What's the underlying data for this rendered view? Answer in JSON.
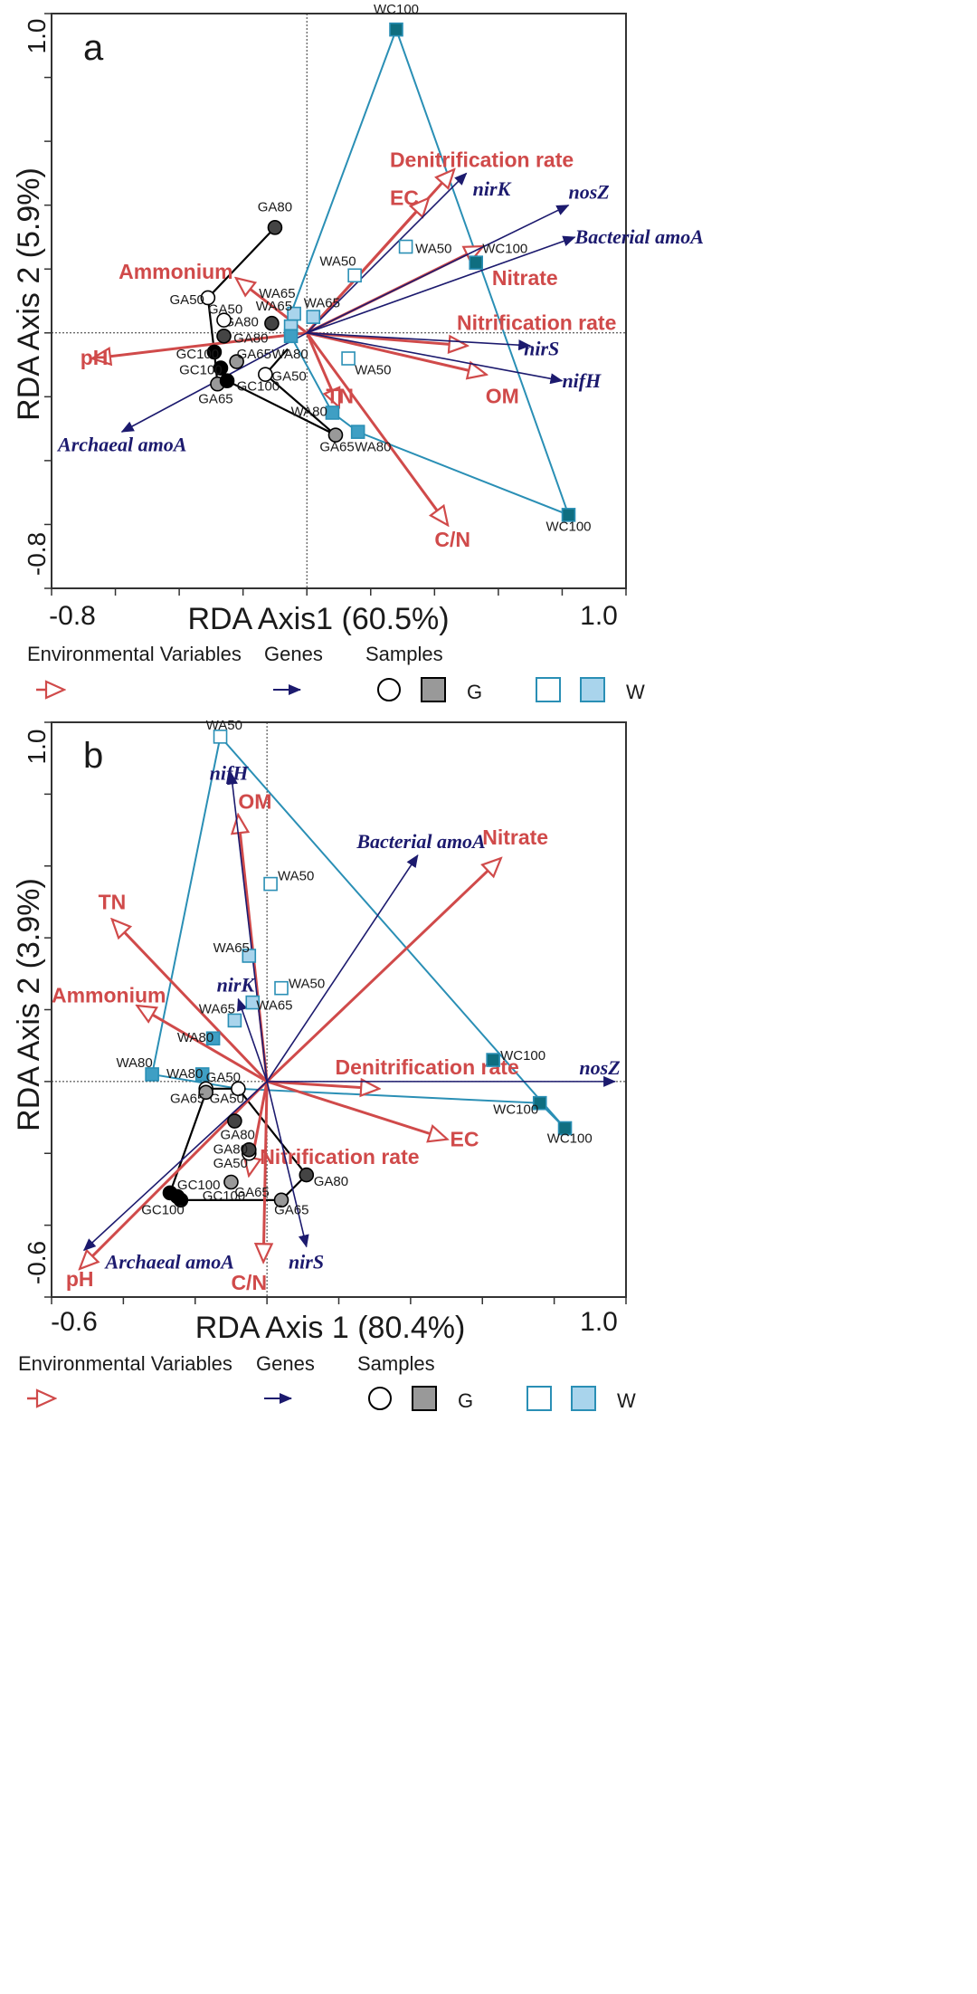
{
  "colors": {
    "env": "#d04a4a",
    "gene": "#1c1a6e",
    "g_hull": "#000000",
    "w_hull": "#2a8fb5",
    "w_dark": "#0f6e80",
    "w_mid": "#3f9fc4",
    "w_light": "#a9d4ec",
    "g_dark": "#444444",
    "g_mid": "#999999",
    "g_light": "#cccccc"
  },
  "legend": {
    "env_label": "Environmental Variables",
    "genes_label": "Genes",
    "samples_label": "Samples",
    "g_label": "G",
    "w_label": "W"
  },
  "chart_data": [
    {
      "type": "scatter",
      "panel_label": "a",
      "xlabel": "RDA Axis1 (60.5%)",
      "ylabel": "RDA Axis 2 (5.9%)",
      "xlim": [
        -0.8,
        1.0
      ],
      "ylim": [
        -0.8,
        1.0
      ],
      "xticks_labeled": [
        {
          "v": -0.8,
          "label": "-0.8"
        },
        {
          "v": 1.0,
          "label": "1.0"
        }
      ],
      "yticks_labeled": [
        {
          "v": -0.8,
          "label": "-0.8"
        },
        {
          "v": 1.0,
          "label": "1.0"
        }
      ],
      "tick_step": 0.2,
      "env_vectors": [
        {
          "name": "Denitrification rate",
          "x": 0.46,
          "y": 0.51,
          "lx": 0.26,
          "ly": 0.52,
          "anchor": "start"
        },
        {
          "name": "EC",
          "x": 0.38,
          "y": 0.42,
          "lx": 0.26,
          "ly": 0.4,
          "anchor": "start"
        },
        {
          "name": "Nitrate",
          "x": 0.55,
          "y": 0.27,
          "lx": 0.58,
          "ly": 0.15,
          "anchor": "start"
        },
        {
          "name": "Nitrification rate",
          "x": 0.5,
          "y": -0.04,
          "lx": 0.47,
          "ly": 0.01,
          "anchor": "start"
        },
        {
          "name": "OM",
          "x": 0.56,
          "y": -0.13,
          "lx": 0.56,
          "ly": -0.22,
          "anchor": "start"
        },
        {
          "name": "C/N",
          "x": 0.44,
          "y": -0.6,
          "lx": 0.4,
          "ly": -0.67,
          "anchor": "start"
        },
        {
          "name": "TN",
          "x": 0.1,
          "y": -0.23,
          "lx": 0.06,
          "ly": -0.22,
          "anchor": "start"
        },
        {
          "name": "Ammonium",
          "x": -0.22,
          "y": 0.17,
          "lx": -0.59,
          "ly": 0.17,
          "anchor": "start"
        },
        {
          "name": "pH",
          "x": -0.67,
          "y": -0.08,
          "lx": -0.71,
          "ly": -0.1,
          "anchor": "start"
        }
      ],
      "gene_vectors": [
        {
          "name": "nirK",
          "x": 0.5,
          "y": 0.5,
          "lx": 0.52,
          "ly": 0.43,
          "anchor": "start"
        },
        {
          "name": "nosZ",
          "x": 0.82,
          "y": 0.4,
          "lx": 0.82,
          "ly": 0.42,
          "anchor": "start"
        },
        {
          "name": "Bacterial amoA",
          "x": 0.84,
          "y": 0.3,
          "lx": 0.84,
          "ly": 0.28,
          "anchor": "start"
        },
        {
          "name": "nirS",
          "x": 0.7,
          "y": -0.04,
          "lx": 0.68,
          "ly": -0.07,
          "anchor": "start"
        },
        {
          "name": "nifH",
          "x": 0.8,
          "y": -0.15,
          "lx": 0.8,
          "ly": -0.17,
          "anchor": "start"
        },
        {
          "name": "Archaeal amoA",
          "x": -0.58,
          "y": -0.31,
          "lx": -0.78,
          "ly": -0.37,
          "anchor": "start"
        }
      ],
      "samples": [
        {
          "label": "WC100",
          "x": 0.28,
          "y": 0.95,
          "group": "W",
          "fill": "dark",
          "lx": 0.28,
          "ly": 1.0,
          "anchor": "middle"
        },
        {
          "label": "WC100",
          "x": 0.53,
          "y": 0.22,
          "group": "W",
          "fill": "dark",
          "lx": 0.55,
          "ly": 0.25,
          "anchor": "start"
        },
        {
          "label": "WC100",
          "x": 0.82,
          "y": -0.57,
          "group": "W",
          "fill": "dark",
          "lx": 0.82,
          "ly": -0.62,
          "anchor": "middle"
        },
        {
          "label": "WA50",
          "x": 0.31,
          "y": 0.27,
          "group": "W",
          "fill": "none",
          "lx": 0.34,
          "ly": 0.25,
          "anchor": "start"
        },
        {
          "label": "WA50",
          "x": 0.15,
          "y": 0.18,
          "group": "W",
          "fill": "none",
          "lx": 0.04,
          "ly": 0.21,
          "anchor": "start"
        },
        {
          "label": "WA50",
          "x": 0.13,
          "y": -0.08,
          "group": "W",
          "fill": "none",
          "lx": 0.15,
          "ly": -0.13,
          "anchor": "start"
        },
        {
          "label": "WA65",
          "x": -0.04,
          "y": 0.06,
          "group": "W",
          "fill": "light",
          "lx": -0.16,
          "ly": 0.07,
          "anchor": "start"
        },
        {
          "label": "WA65",
          "x": 0.02,
          "y": 0.05,
          "group": "W",
          "fill": "light",
          "lx": -0.01,
          "ly": 0.08,
          "anchor": "start"
        },
        {
          "label": "WA65",
          "x": -0.05,
          "y": 0.02,
          "group": "W",
          "fill": "light",
          "lx": -0.15,
          "ly": 0.11,
          "anchor": "start"
        },
        {
          "label": "WA80",
          "x": -0.05,
          "y": -0.01,
          "group": "W",
          "fill": "mid",
          "lx": -0.11,
          "ly": -0.08,
          "anchor": "start"
        },
        {
          "label": "WA80",
          "x": 0.08,
          "y": -0.25,
          "group": "W",
          "fill": "mid",
          "lx": -0.05,
          "ly": -0.26,
          "anchor": "start"
        },
        {
          "label": "WA80",
          "x": 0.16,
          "y": -0.31,
          "group": "W",
          "fill": "mid",
          "lx": 0.15,
          "ly": -0.37,
          "anchor": "start"
        },
        {
          "label": "GA80",
          "x": -0.1,
          "y": 0.33,
          "group": "G",
          "fill": "dark",
          "lx": -0.1,
          "ly": 0.38,
          "anchor": "middle"
        },
        {
          "label": "GA80",
          "x": -0.11,
          "y": 0.03,
          "group": "G",
          "fill": "dark",
          "lx": -0.26,
          "ly": 0.02,
          "anchor": "start"
        },
        {
          "label": "GA80",
          "x": -0.26,
          "y": -0.01,
          "group": "G",
          "fill": "dark",
          "lx": -0.23,
          "ly": -0.03,
          "anchor": "start"
        },
        {
          "label": "GA50",
          "x": -0.31,
          "y": 0.11,
          "group": "G",
          "fill": "none",
          "lx": -0.43,
          "ly": 0.09,
          "anchor": "start"
        },
        {
          "label": "GA50",
          "x": -0.26,
          "y": 0.04,
          "group": "G",
          "fill": "none",
          "lx": -0.31,
          "ly": 0.06,
          "anchor": "start"
        },
        {
          "label": "GA50",
          "x": -0.13,
          "y": -0.13,
          "group": "G",
          "fill": "none",
          "lx": -0.11,
          "ly": -0.15,
          "anchor": "start"
        },
        {
          "label": "GA65",
          "x": -0.22,
          "y": -0.09,
          "group": "G",
          "fill": "mid",
          "lx": -0.22,
          "ly": -0.08,
          "anchor": "start"
        },
        {
          "label": "GA65",
          "x": -0.28,
          "y": -0.16,
          "group": "G",
          "fill": "mid",
          "lx": -0.34,
          "ly": -0.22,
          "anchor": "start"
        },
        {
          "label": "GA65",
          "x": 0.09,
          "y": -0.32,
          "group": "G",
          "fill": "mid",
          "lx": 0.04,
          "ly": -0.37,
          "anchor": "start"
        },
        {
          "label": "GC100",
          "x": -0.29,
          "y": -0.06,
          "group": "G",
          "fill": "black",
          "lx": -0.41,
          "ly": -0.08,
          "anchor": "start"
        },
        {
          "label": "GC100",
          "x": -0.27,
          "y": -0.11,
          "group": "G",
          "fill": "black",
          "lx": -0.4,
          "ly": -0.13,
          "anchor": "start"
        },
        {
          "label": "GC100",
          "x": -0.25,
          "y": -0.15,
          "group": "G",
          "fill": "black",
          "lx": -0.22,
          "ly": -0.18,
          "anchor": "start"
        }
      ],
      "g_hull": [
        [
          -0.1,
          0.33
        ],
        [
          -0.31,
          0.11
        ],
        [
          -0.29,
          -0.06
        ],
        [
          -0.28,
          -0.16
        ],
        [
          -0.25,
          -0.15
        ],
        [
          0.09,
          -0.32
        ],
        [
          -0.13,
          -0.13
        ],
        [
          -0.06,
          -0.05
        ]
      ],
      "w_hull": [
        [
          0.28,
          0.95
        ],
        [
          0.82,
          -0.57
        ],
        [
          0.16,
          -0.31
        ],
        [
          0.08,
          -0.25
        ],
        [
          -0.05,
          -0.01
        ],
        [
          -0.05,
          0.06
        ],
        [
          0.28,
          0.95
        ]
      ]
    },
    {
      "type": "scatter",
      "panel_label": "b",
      "xlabel": "RDA Axis 1 (80.4%)",
      "ylabel": "RDA Axis 2 (3.9%)",
      "xlim": [
        -0.6,
        1.0
      ],
      "ylim": [
        -0.6,
        1.0
      ],
      "xticks_labeled": [
        {
          "v": -0.6,
          "label": "-0.6"
        },
        {
          "v": 1.0,
          "label": "1.0"
        }
      ],
      "yticks_labeled": [
        {
          "v": -0.6,
          "label": "-0.6"
        },
        {
          "v": 1.0,
          "label": "1.0"
        }
      ],
      "tick_step": 0.2,
      "env_vectors": [
        {
          "name": "OM",
          "x": -0.08,
          "y": 0.74,
          "lx": -0.08,
          "ly": 0.76,
          "anchor": "start"
        },
        {
          "name": "Nitrate",
          "x": 0.65,
          "y": 0.62,
          "lx": 0.6,
          "ly": 0.66,
          "anchor": "start"
        },
        {
          "name": "TN",
          "x": -0.43,
          "y": 0.45,
          "lx": -0.47,
          "ly": 0.48,
          "anchor": "start"
        },
        {
          "name": "Ammonium",
          "x": -0.36,
          "y": 0.21,
          "lx": -0.6,
          "ly": 0.22,
          "anchor": "start"
        },
        {
          "name": "Denitrification rate",
          "x": 0.31,
          "y": -0.02,
          "lx": 0.19,
          "ly": 0.02,
          "anchor": "start"
        },
        {
          "name": "EC",
          "x": 0.5,
          "y": -0.16,
          "lx": 0.51,
          "ly": -0.18,
          "anchor": "start"
        },
        {
          "name": "Nitrification rate",
          "x": -0.05,
          "y": -0.26,
          "lx": -0.02,
          "ly": -0.23,
          "anchor": "start"
        },
        {
          "name": "C/N",
          "x": -0.01,
          "y": -0.5,
          "lx": -0.1,
          "ly": -0.58,
          "anchor": "start"
        },
        {
          "name": "pH",
          "x": -0.52,
          "y": -0.52,
          "lx": -0.56,
          "ly": -0.57,
          "anchor": "start"
        }
      ],
      "gene_vectors": [
        {
          "name": "nifH",
          "x": -0.1,
          "y": 0.86,
          "lx": -0.16,
          "ly": 0.84,
          "anchor": "start"
        },
        {
          "name": "Bacterial amoA",
          "x": 0.42,
          "y": 0.63,
          "lx": 0.25,
          "ly": 0.65,
          "anchor": "start"
        },
        {
          "name": "nirK",
          "x": -0.08,
          "y": 0.23,
          "lx": -0.14,
          "ly": 0.25,
          "anchor": "start"
        },
        {
          "name": "nosZ",
          "x": 0.97,
          "y": 0.0,
          "lx": 0.87,
          "ly": 0.02,
          "anchor": "start"
        },
        {
          "name": "nirS",
          "x": 0.11,
          "y": -0.46,
          "lx": 0.06,
          "ly": -0.52,
          "anchor": "start"
        },
        {
          "name": "Archaeal amoA",
          "x": -0.51,
          "y": -0.47,
          "lx": -0.45,
          "ly": -0.52,
          "anchor": "start"
        }
      ],
      "samples": [
        {
          "label": "WA50",
          "x": -0.13,
          "y": 0.96,
          "group": "W",
          "fill": "none",
          "lx": -0.17,
          "ly": 0.98,
          "anchor": "start"
        },
        {
          "label": "WA50",
          "x": 0.01,
          "y": 0.55,
          "group": "W",
          "fill": "none",
          "lx": 0.03,
          "ly": 0.56,
          "anchor": "start"
        },
        {
          "label": "WA50",
          "x": 0.04,
          "y": 0.26,
          "group": "W",
          "fill": "none",
          "lx": 0.06,
          "ly": 0.26,
          "anchor": "start"
        },
        {
          "label": "WA65",
          "x": -0.05,
          "y": 0.35,
          "group": "W",
          "fill": "light",
          "lx": -0.15,
          "ly": 0.36,
          "anchor": "start"
        },
        {
          "label": "WA65",
          "x": -0.04,
          "y": 0.22,
          "group": "W",
          "fill": "light",
          "lx": -0.03,
          "ly": 0.2,
          "anchor": "start"
        },
        {
          "label": "WA65",
          "x": -0.09,
          "y": 0.17,
          "group": "W",
          "fill": "light",
          "lx": -0.19,
          "ly": 0.19,
          "anchor": "start"
        },
        {
          "label": "WA80",
          "x": -0.15,
          "y": 0.12,
          "group": "W",
          "fill": "mid",
          "lx": -0.25,
          "ly": 0.11,
          "anchor": "start"
        },
        {
          "label": "WA80",
          "x": -0.32,
          "y": 0.02,
          "group": "W",
          "fill": "mid",
          "lx": -0.42,
          "ly": 0.04,
          "anchor": "start"
        },
        {
          "label": "WA80",
          "x": -0.18,
          "y": 0.02,
          "group": "W",
          "fill": "mid",
          "lx": -0.28,
          "ly": 0.01,
          "anchor": "start"
        },
        {
          "label": "WC100",
          "x": 0.63,
          "y": 0.06,
          "group": "W",
          "fill": "dark",
          "lx": 0.65,
          "ly": 0.06,
          "anchor": "start"
        },
        {
          "label": "WC100",
          "x": 0.76,
          "y": -0.06,
          "group": "W",
          "fill": "dark",
          "lx": 0.63,
          "ly": -0.09,
          "anchor": "start"
        },
        {
          "label": "WC100",
          "x": 0.83,
          "y": -0.13,
          "group": "W",
          "fill": "dark",
          "lx": 0.78,
          "ly": -0.17,
          "anchor": "start"
        },
        {
          "label": "GA50",
          "x": -0.17,
          "y": -0.02,
          "group": "G",
          "fill": "none",
          "lx": -0.17,
          "ly": 0.0,
          "anchor": "start"
        },
        {
          "label": "GA50",
          "x": -0.08,
          "y": -0.02,
          "group": "G",
          "fill": "none",
          "lx": -0.16,
          "ly": -0.06,
          "anchor": "start"
        },
        {
          "label": "GA50",
          "x": -0.05,
          "y": -0.2,
          "group": "G",
          "fill": "none",
          "lx": -0.15,
          "ly": -0.24,
          "anchor": "start"
        },
        {
          "label": "GA65",
          "x": -0.17,
          "y": -0.03,
          "group": "G",
          "fill": "mid",
          "lx": -0.27,
          "ly": -0.06,
          "anchor": "start"
        },
        {
          "label": "GA65",
          "x": -0.1,
          "y": -0.28,
          "group": "G",
          "fill": "mid",
          "lx": -0.09,
          "ly": -0.32,
          "anchor": "start"
        },
        {
          "label": "GA65",
          "x": 0.04,
          "y": -0.33,
          "group": "G",
          "fill": "mid",
          "lx": 0.02,
          "ly": -0.37,
          "anchor": "start"
        },
        {
          "label": "GA80",
          "x": -0.09,
          "y": -0.11,
          "group": "G",
          "fill": "dark",
          "lx": -0.13,
          "ly": -0.16,
          "anchor": "start"
        },
        {
          "label": "GA80",
          "x": -0.05,
          "y": -0.19,
          "group": "G",
          "fill": "dark",
          "lx": -0.15,
          "ly": -0.2,
          "anchor": "start"
        },
        {
          "label": "GA80",
          "x": 0.11,
          "y": -0.26,
          "group": "G",
          "fill": "dark",
          "lx": 0.13,
          "ly": -0.29,
          "anchor": "start"
        },
        {
          "label": "GC100",
          "x": -0.27,
          "y": -0.31,
          "group": "G",
          "fill": "black",
          "lx": -0.25,
          "ly": -0.3,
          "anchor": "start"
        },
        {
          "label": "GC100",
          "x": -0.24,
          "y": -0.33,
          "group": "G",
          "fill": "black",
          "lx": -0.18,
          "ly": -0.33,
          "anchor": "start"
        },
        {
          "label": "GC100",
          "x": -0.25,
          "y": -0.32,
          "group": "G",
          "fill": "black",
          "lx": -0.35,
          "ly": -0.37,
          "anchor": "start"
        }
      ],
      "g_hull": [
        [
          -0.17,
          -0.02
        ],
        [
          -0.08,
          -0.02
        ],
        [
          0.11,
          -0.26
        ],
        [
          0.04,
          -0.33
        ],
        [
          -0.24,
          -0.33
        ],
        [
          -0.27,
          -0.31
        ],
        [
          -0.17,
          -0.03
        ]
      ],
      "w_hull": [
        [
          -0.13,
          0.96
        ],
        [
          0.83,
          -0.13
        ],
        [
          0.76,
          -0.06
        ],
        [
          -0.08,
          -0.02
        ],
        [
          -0.32,
          0.02
        ],
        [
          -0.13,
          0.96
        ]
      ]
    }
  ]
}
